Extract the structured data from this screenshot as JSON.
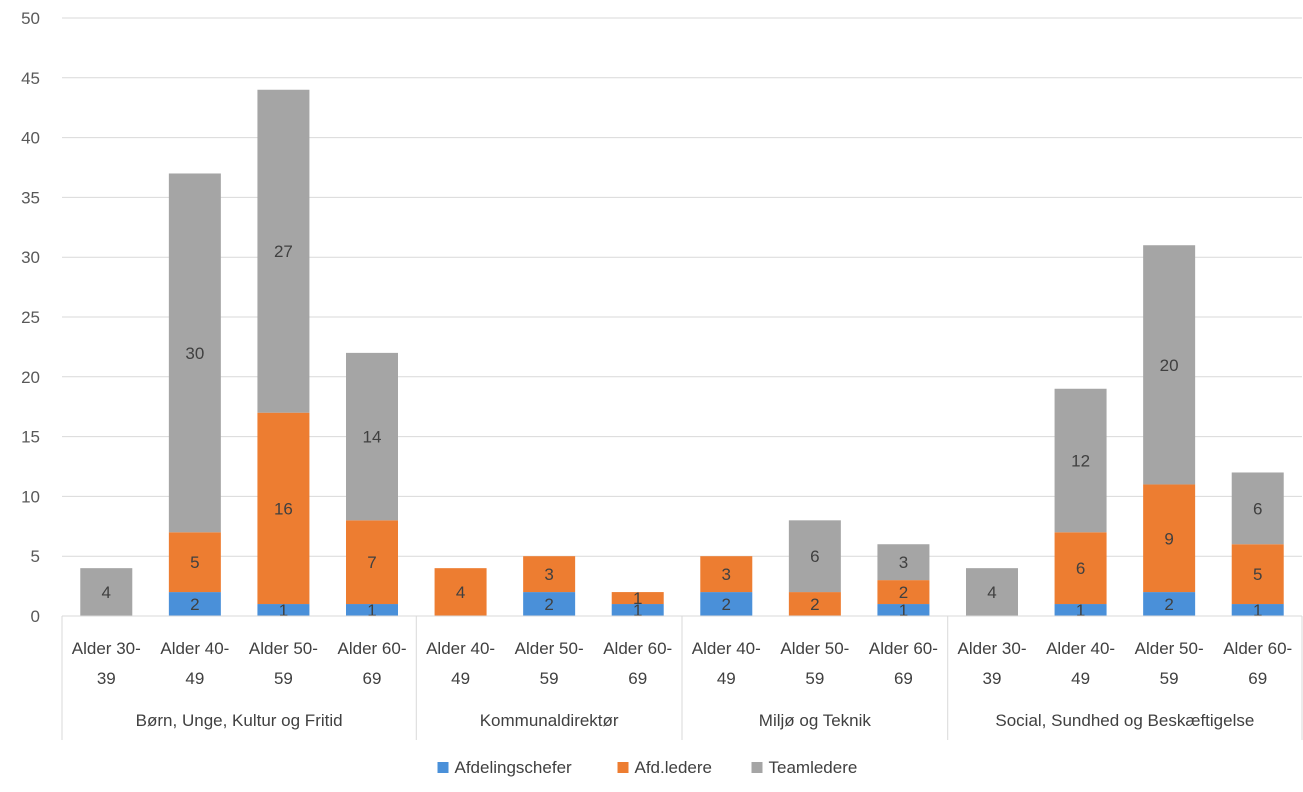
{
  "chart_data": {
    "type": "bar",
    "stacked": true,
    "title": "",
    "xlabel": "",
    "ylabel": "",
    "ylim": [
      0,
      50
    ],
    "yticks": [
      0,
      5,
      10,
      15,
      20,
      25,
      30,
      35,
      40,
      45,
      50
    ],
    "grid": true,
    "legend_position": "bottom",
    "groups": [
      {
        "label": "Børn, Unge, Kultur og Fritid",
        "categories": [
          "Alder 30-39",
          "Alder 40-49",
          "Alder 50-59",
          "Alder 60-69"
        ]
      },
      {
        "label": "Kommunaldirektør",
        "categories": [
          "Alder 40-49",
          "Alder 50-59",
          "Alder 60-69"
        ]
      },
      {
        "label": "Miljø og Teknik",
        "categories": [
          "Alder 40-49",
          "Alder 50-59",
          "Alder 60-69"
        ]
      },
      {
        "label": "Social, Sundhed og Beskæftigelse",
        "categories": [
          "Alder 30-39",
          "Alder 40-49",
          "Alder 50-59",
          "Alder 60-69"
        ]
      }
    ],
    "category_display": [
      [
        "Alder 30-",
        "39"
      ],
      [
        "Alder 40-",
        "49"
      ],
      [
        "Alder 50-",
        "59"
      ],
      [
        "Alder 60-",
        "69"
      ],
      [
        "Alder 40-",
        "49"
      ],
      [
        "Alder 50-",
        "59"
      ],
      [
        "Alder 60-",
        "69"
      ],
      [
        "Alder 40-",
        "49"
      ],
      [
        "Alder 50-",
        "59"
      ],
      [
        "Alder 60-",
        "69"
      ],
      [
        "Alder 30-",
        "39"
      ],
      [
        "Alder 40-",
        "49"
      ],
      [
        "Alder 50-",
        "59"
      ],
      [
        "Alder 60-",
        "69"
      ]
    ],
    "series": [
      {
        "name": "Afdelingschefer",
        "color": "#4a90d9",
        "values": [
          0,
          2,
          1,
          1,
          0,
          2,
          1,
          2,
          0,
          1,
          0,
          1,
          2,
          1
        ]
      },
      {
        "name": "Afd.ledere",
        "color": "#ed7d31",
        "values": [
          0,
          5,
          16,
          7,
          4,
          3,
          1,
          3,
          2,
          2,
          0,
          6,
          9,
          5
        ]
      },
      {
        "name": "Teamledere",
        "color": "#a5a5a5",
        "values": [
          4,
          30,
          27,
          14,
          0,
          0,
          0,
          0,
          6,
          3,
          4,
          12,
          20,
          6
        ]
      }
    ]
  }
}
